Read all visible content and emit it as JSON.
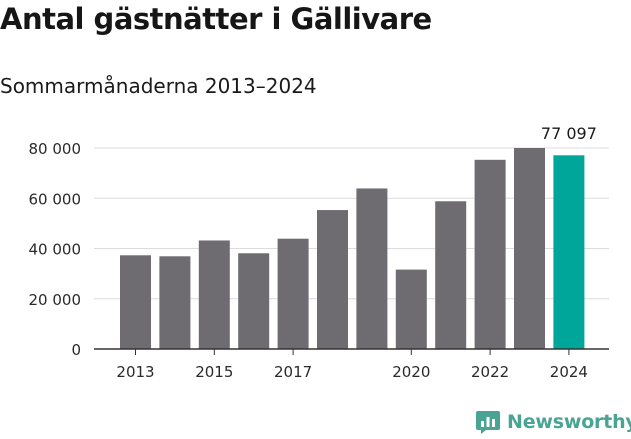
{
  "title": "Antal gästnätter i Gällivare",
  "subtitle": "Sommarmånaderna 2013–2024",
  "brand": {
    "name": "Newsworthy",
    "icon": "newsworthy-logo-icon",
    "color": "#4aa493"
  },
  "chart_data": {
    "type": "bar",
    "categories": [
      "2013",
      "2014",
      "2015",
      "2016",
      "2017",
      "2018",
      "2019",
      "2020",
      "2021",
      "2022",
      "2023",
      "2024"
    ],
    "values": [
      37300,
      36900,
      43200,
      38100,
      43900,
      55300,
      63900,
      31600,
      58800,
      75300,
      80000,
      77097
    ],
    "x_tick_labels": [
      "2013",
      "",
      "2015",
      "",
      "2017",
      "",
      "",
      "2020",
      "",
      "2022",
      "",
      "2024"
    ],
    "y_ticks": [
      0,
      20000,
      40000,
      60000,
      80000
    ],
    "y_tick_labels": [
      "0",
      "20 000",
      "40 000",
      "60 000",
      "80 000"
    ],
    "ylim": [
      0,
      80000
    ],
    "grid": true,
    "annotation": {
      "index": 11,
      "text": "77 097"
    },
    "colors": {
      "default": "#6e6c71",
      "highlight": "#00a699"
    },
    "highlight_index": 11,
    "xlabel": "",
    "ylabel": ""
  }
}
